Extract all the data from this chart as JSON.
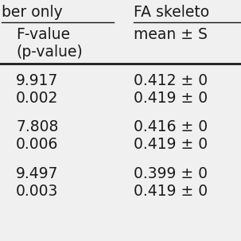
{
  "col1_header": "ber only",
  "col2_header": "FA skeleto ",
  "col1_subheader_1": "F-value",
  "col1_subheader_2": "(p-value)",
  "col2_subheader": "mean ± S",
  "rows": [
    [
      "9.917",
      "0.412 ± 0"
    ],
    [
      "0.002",
      "0.419 ± 0"
    ],
    [
      "",
      ""
    ],
    [
      "7.808",
      "0.416 ± 0"
    ],
    [
      "0.006",
      "0.419 ± 0"
    ],
    [
      "",
      ""
    ],
    [
      "9.497",
      "0.399 ± 0"
    ],
    [
      "0.003",
      "0.419 ± 0"
    ]
  ],
  "bg_color": "#f0f0f0",
  "text_color": "#1a1a1a",
  "font_size": 13.5
}
